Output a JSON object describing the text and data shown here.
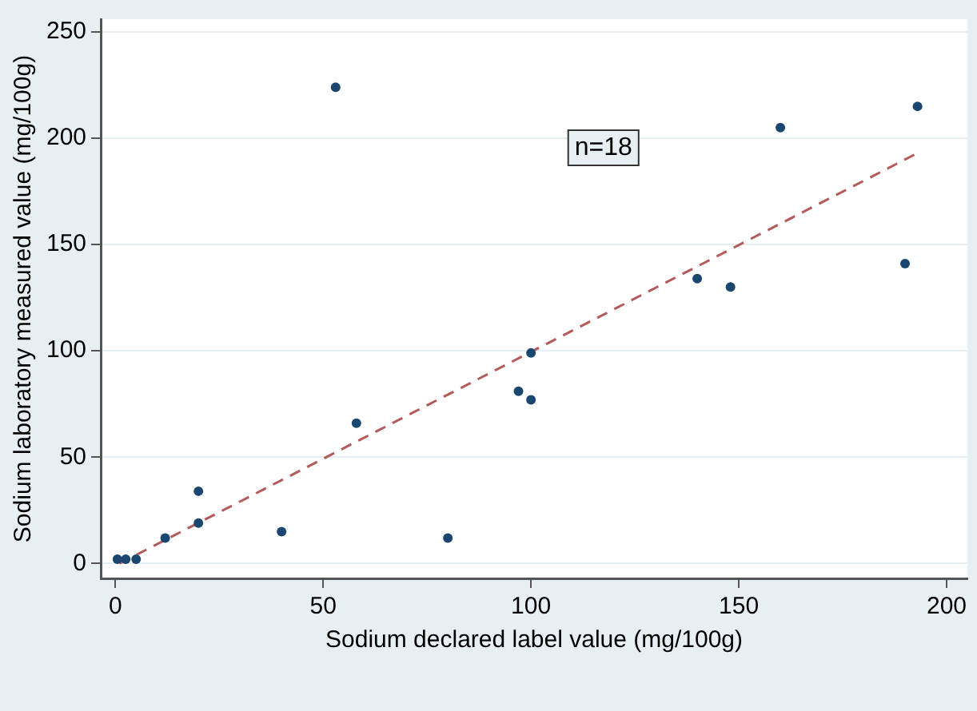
{
  "chart_data": {
    "type": "scatter",
    "xlabel": "Sodium declared label value (mg/100g)",
    "ylabel": "Sodium laboratory measured value (mg/100g)",
    "xlim": [
      -3.5,
      205
    ],
    "ylim": [
      -7,
      256
    ],
    "xticks": [
      0,
      50,
      100,
      150,
      200
    ],
    "yticks": [
      0,
      50,
      100,
      150,
      200,
      250
    ],
    "grid": "y",
    "legend": false,
    "marker": "circle",
    "series": [
      {
        "color": "#1a476f",
        "x": [
          0.5,
          2.5,
          5,
          12,
          20,
          20,
          40,
          53,
          58,
          80,
          97,
          100,
          100,
          140,
          148,
          160,
          190,
          193
        ],
        "values": [
          2,
          2,
          2,
          12,
          34,
          19,
          15,
          224,
          66,
          12,
          81,
          99,
          77,
          134,
          130,
          205,
          141,
          215
        ]
      },
      {
        "type": "line",
        "color": "#b55a5a",
        "line_style": "dashed",
        "marker": "none",
        "x": [
          1,
          193
        ],
        "values": [
          0,
          193
        ]
      }
    ],
    "annotations": [
      "n=18"
    ]
  }
}
